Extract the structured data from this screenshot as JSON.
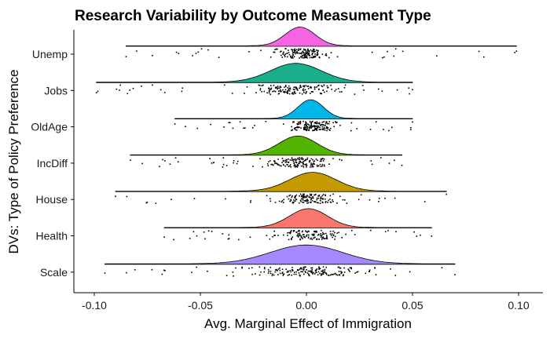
{
  "chart_data": {
    "type": "raincloud",
    "title": "Research Variability by Outcome Measument Type",
    "xlabel": "Avg. Marginal Effect of Immigration",
    "ylabel": "DVs: Type of Policy Preference",
    "xlim": [
      -0.1,
      0.1
    ],
    "x_ticks": [
      -0.1,
      -0.05,
      0.0,
      0.05,
      0.1
    ],
    "x_tick_labels": [
      "-0.10",
      "-0.05",
      "0.00",
      "0.05",
      "0.10"
    ],
    "grid": false,
    "legend": "none",
    "series": [
      {
        "name": "Unemp",
        "color": "#F564E3",
        "range": [
          -0.085,
          0.099
        ],
        "center": -0.003,
        "spread": 0.007,
        "n": 180,
        "seed": 11
      },
      {
        "name": "Jobs",
        "color": "#1AAF8C",
        "range": [
          -0.099,
          0.05
        ],
        "center": -0.005,
        "spread": 0.012,
        "n": 170,
        "seed": 23
      },
      {
        "name": "OldAge",
        "color": "#00B8E8",
        "range": [
          -0.062,
          0.05
        ],
        "center": 0.002,
        "spread": 0.006,
        "n": 180,
        "seed": 37
      },
      {
        "name": "IncDiff",
        "color": "#53B400",
        "range": [
          -0.083,
          0.045
        ],
        "center": -0.004,
        "spread": 0.009,
        "n": 170,
        "seed": 41
      },
      {
        "name": "House",
        "color": "#C49A00",
        "range": [
          -0.09,
          0.066
        ],
        "center": 0.003,
        "spread": 0.011,
        "n": 150,
        "seed": 53
      },
      {
        "name": "Health",
        "color": "#F8766D",
        "range": [
          -0.067,
          0.059
        ],
        "center": 0.001,
        "spread": 0.009,
        "n": 150,
        "seed": 67
      },
      {
        "name": "Scale",
        "color": "#A58AFF",
        "range": [
          -0.095,
          0.07
        ],
        "center": 0.0,
        "spread": 0.017,
        "n": 190,
        "seed": 79
      }
    ]
  }
}
